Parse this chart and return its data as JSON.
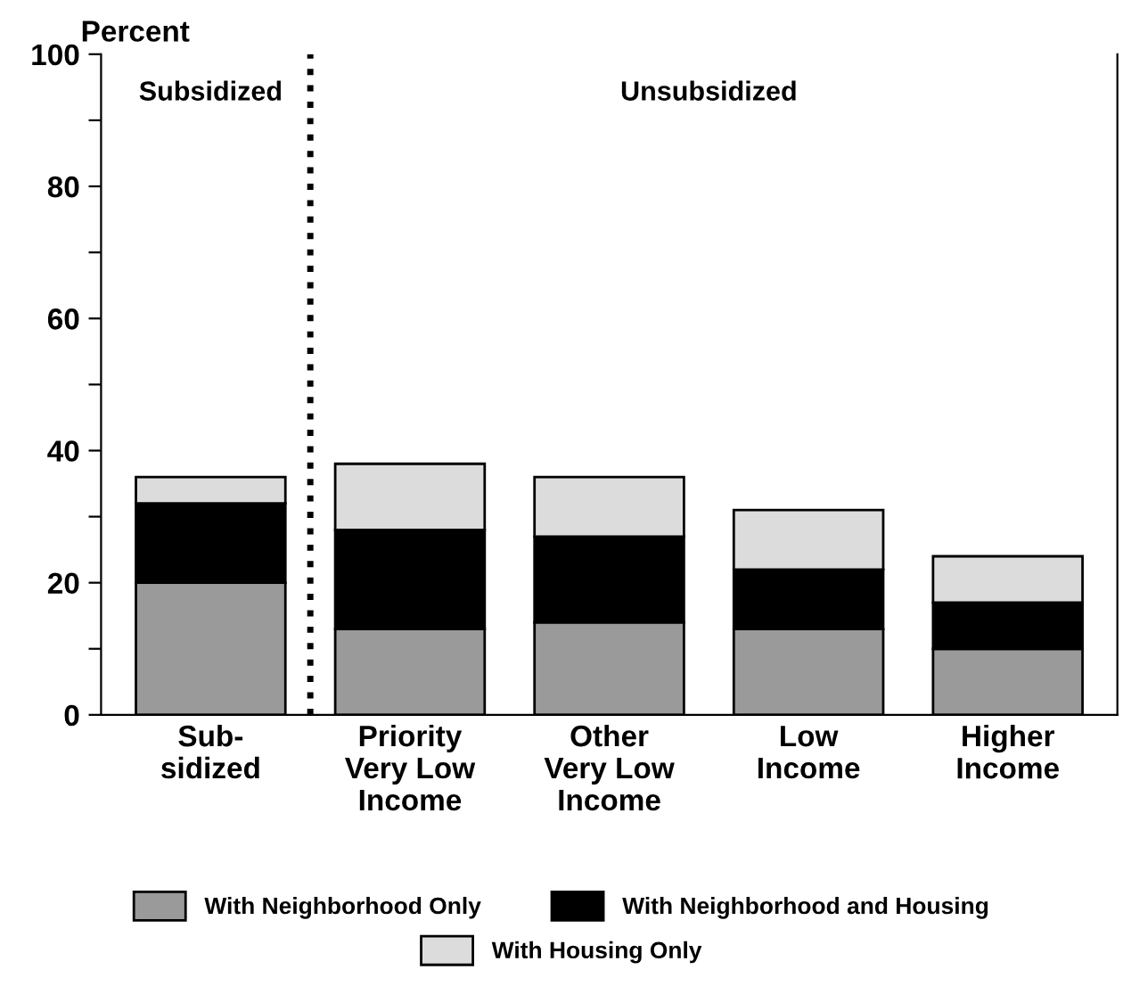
{
  "chart_data": {
    "type": "bar",
    "stacked": true,
    "ylabel": "Percent",
    "categories": [
      "Sub-\nsidized",
      "Priority\nVery Low\nIncome",
      "Other\nVery Low\nIncome",
      "Low\nIncome",
      "Higher\nIncome"
    ],
    "series": [
      {
        "name": "With Neighborhood Only",
        "color": "#9a9a9a",
        "values": [
          20,
          13,
          14,
          13,
          10
        ]
      },
      {
        "name": "With Neighborhood and Housing",
        "color": "#000000",
        "values": [
          12,
          15,
          13,
          9,
          7
        ]
      },
      {
        "name": "With Housing Only",
        "color": "#dcdcdc",
        "values": [
          4,
          10,
          9,
          9,
          7
        ]
      }
    ],
    "ylim": [
      0,
      100
    ],
    "yticks": [
      0,
      {
        "value": 10,
        "label": null
      },
      20,
      {
        "value": 30,
        "label": null
      },
      40,
      {
        "value": 50,
        "label": null
      },
      60,
      {
        "value": 70,
        "label": null
      },
      80,
      {
        "value": 90,
        "label": null
      },
      100
    ],
    "annotations": [
      "Subsidized",
      "Unsubsidized"
    ],
    "legend": "bottom",
    "grid": false
  }
}
